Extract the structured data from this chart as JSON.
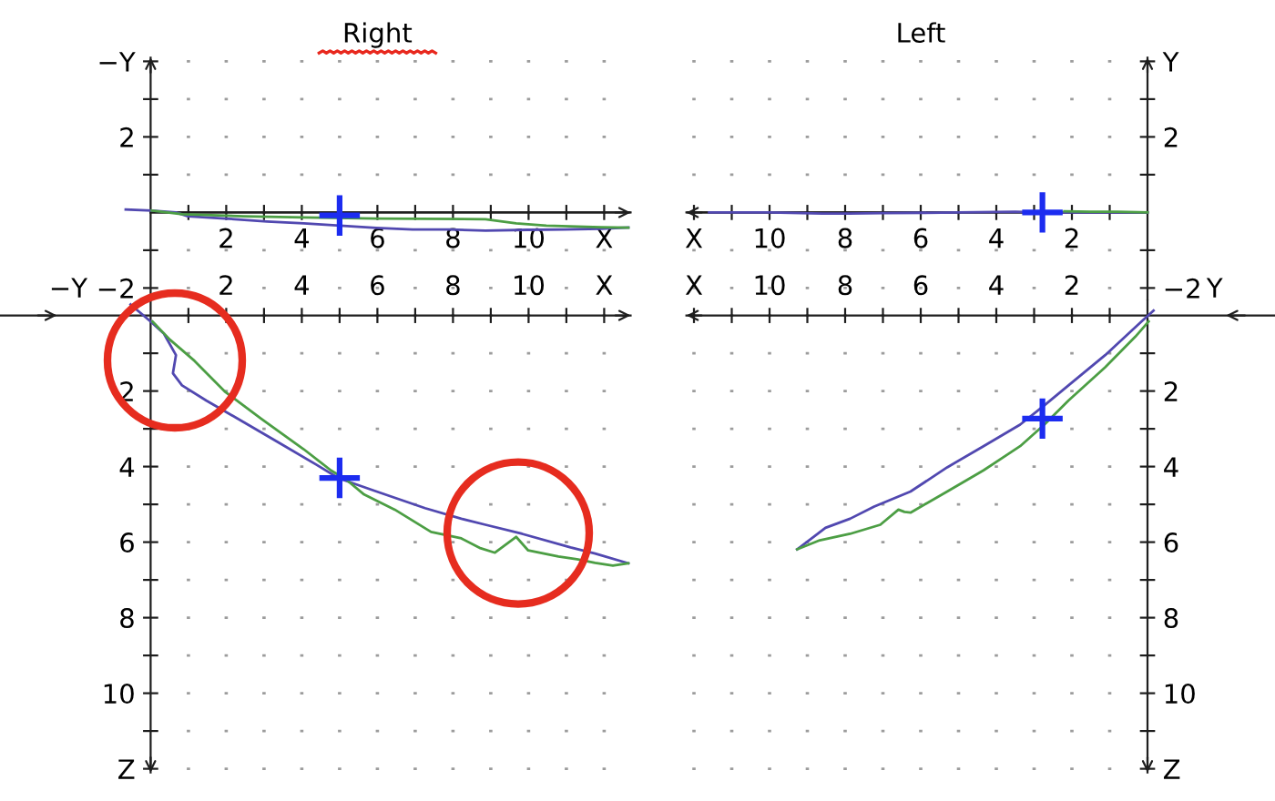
{
  "chart_data": [
    {
      "type": "line",
      "title": "Right",
      "xlim": [
        -4,
        12.7
      ],
      "ylim": [
        -2.3,
        4.1
      ],
      "xticks": [
        {
          "value": 1,
          "label": null
        },
        2,
        {
          "value": 3,
          "label": null
        },
        4,
        {
          "value": 5,
          "label": null
        },
        6,
        {
          "value": 7,
          "label": null
        },
        8,
        {
          "value": 9,
          "label": null
        },
        10,
        {
          "value": 11,
          "label": null
        },
        {
          "value": 12,
          "label": "X"
        }
      ],
      "yticks": [
        {
          "value": -2,
          "label": "−2"
        },
        {
          "value": -1,
          "label": null
        },
        {
          "value": 1,
          "label": null
        },
        2,
        {
          "value": 3,
          "label": null
        },
        {
          "value": 4,
          "label": "−Y"
        }
      ],
      "grid": "x",
      "ref_lines": [
        {
          "axis": "y",
          "value": 0
        }
      ],
      "series": [
        {
          "color": "#5148b0",
          "x": [
            -0.66,
            0.03,
            0.67,
            0.99,
            1.96,
            3.08,
            4.05,
            5.01,
            5.97,
            6.93,
            7.9,
            8.86,
            9.98,
            10.95,
            11.92,
            12.64
          ],
          "values": [
            0.08,
            0.05,
            0,
            -0.1,
            -0.16,
            -0.24,
            -0.29,
            -0.35,
            -0.41,
            -0.45,
            -0.45,
            -0.48,
            -0.46,
            -0.45,
            -0.43,
            -0.4
          ]
        },
        {
          "color": "#4c9e44",
          "x": [
            0.03,
            0.84,
            2.45,
            4.05,
            5.97,
            8.86,
            9.67,
            10.47,
            11.92,
            12.64
          ],
          "values": [
            0.05,
            -0.05,
            -0.1,
            -0.13,
            -0.16,
            -0.18,
            -0.29,
            -0.35,
            -0.39,
            -0.4
          ]
        },
        {
          "type": "scatter",
          "marker": "cross",
          "color": "#1c2cf0",
          "x": [
            5
          ],
          "values": [
            -0.08
          ]
        }
      ]
    },
    {
      "type": "line",
      "xlim": [
        -4,
        12.7
      ],
      "ylim": [
        12.1,
        -0.4
      ],
      "xticks": [
        {
          "value": 1,
          "label": null
        },
        2,
        {
          "value": 3,
          "label": null
        },
        4,
        {
          "value": 5,
          "label": null
        },
        6,
        {
          "value": 7,
          "label": null
        },
        8,
        {
          "value": 9,
          "label": null
        },
        10,
        {
          "value": 11,
          "label": null
        },
        {
          "value": 12,
          "label": "X"
        }
      ],
      "yticks": [
        {
          "value": 1,
          "label": null
        },
        2,
        {
          "value": 3,
          "label": null
        },
        4,
        {
          "value": 5,
          "label": null
        },
        6,
        {
          "value": 7,
          "label": null
        },
        8,
        {
          "value": 9,
          "label": null
        },
        10,
        {
          "value": 11,
          "label": null
        },
        {
          "value": 12,
          "label": "Z"
        }
      ],
      "grid": "x",
      "annotations": [
        "−Y"
      ],
      "series": [
        {
          "color": "#5148b0",
          "x": [
            -0.53,
            0,
            0.35,
            0.67,
            0.59,
            0.83,
            1.47,
            2.44,
            3.4,
            4.37,
            4.98,
            5.98,
            7.26,
            8.22,
            8.86,
            9.83,
            11.11,
            11.76,
            12.64
          ],
          "values": [
            -0.29,
            0.16,
            0.48,
            1.05,
            1.53,
            1.85,
            2.25,
            2.81,
            3.37,
            3.94,
            4.31,
            4.66,
            5.1,
            5.38,
            5.54,
            5.78,
            6.14,
            6.3,
            6.56
          ]
        },
        {
          "color": "#4c9e44",
          "x": [
            0.05,
            0.51,
            1.16,
            1.96,
            2.92,
            4.05,
            4.77,
            5.17,
            5.65,
            6.46,
            7.42,
            8.22,
            8.7,
            9.11,
            9.67,
            9.99,
            10.79,
            11.28,
            11.76,
            12.23,
            12.64
          ],
          "values": [
            0.16,
            0.64,
            1.2,
            2.01,
            2.73,
            3.54,
            4.1,
            4.34,
            4.74,
            5.14,
            5.73,
            5.9,
            6.15,
            6.28,
            5.86,
            6.22,
            6.38,
            6.45,
            6.55,
            6.62,
            6.56
          ]
        },
        {
          "type": "scatter",
          "marker": "cross",
          "color": "#1c2cf0",
          "x": [
            5
          ],
          "values": [
            4.3
          ]
        }
      ]
    },
    {
      "type": "line",
      "title": "Left",
      "xlim": [
        12.2,
        -3.35
      ],
      "ylim": [
        -2.3,
        4.1
      ],
      "xticks": [
        {
          "value": 1,
          "label": null
        },
        2,
        {
          "value": 3,
          "label": null
        },
        4,
        {
          "value": 5,
          "label": null
        },
        6,
        {
          "value": 7,
          "label": null
        },
        8,
        {
          "value": 9,
          "label": null
        },
        10,
        {
          "value": 11,
          "label": null
        },
        {
          "value": 12,
          "label": "X"
        }
      ],
      "yticks": [
        {
          "value": -2,
          "label": "−2"
        },
        {
          "value": -1,
          "label": null
        },
        {
          "value": 1,
          "label": null
        },
        2,
        {
          "value": 3,
          "label": null
        },
        {
          "value": 4,
          "label": "Y"
        }
      ],
      "grid": "x",
      "ref_lines": [
        {
          "axis": "y",
          "value": 0
        }
      ],
      "series": [
        {
          "color": "#5148b0",
          "x": [
            11.6,
            10,
            8.6,
            7.9,
            7,
            5,
            3.5,
            2.8,
            1,
            0
          ],
          "values": [
            0,
            0,
            -0.03,
            -0.03,
            -0.02,
            0,
            0.02,
            0,
            0,
            0
          ]
        },
        {
          "color": "#4c9e44",
          "x": [
            2.2,
            1.5,
            0.8,
            0
          ],
          "values": [
            0.03,
            0.02,
            0.02,
            0
          ]
        },
        {
          "type": "scatter",
          "marker": "cross",
          "color": "#1c2cf0",
          "x": [
            2.78
          ],
          "values": [
            0
          ]
        }
      ]
    },
    {
      "type": "line",
      "xlim": [
        12.2,
        -3.35
      ],
      "ylim": [
        12.1,
        -0.4
      ],
      "xticks": [
        {
          "value": 1,
          "label": null
        },
        2,
        {
          "value": 3,
          "label": null
        },
        4,
        {
          "value": 5,
          "label": null
        },
        6,
        {
          "value": 7,
          "label": null
        },
        8,
        {
          "value": 9,
          "label": null
        },
        10,
        {
          "value": 11,
          "label": null
        },
        {
          "value": 12,
          "label": "X"
        }
      ],
      "yticks": [
        {
          "value": 1,
          "label": null
        },
        2,
        {
          "value": 3,
          "label": null
        },
        4,
        {
          "value": 5,
          "label": null
        },
        6,
        {
          "value": 7,
          "label": null
        },
        8,
        {
          "value": 9,
          "label": null
        },
        10,
        {
          "value": 11,
          "label": null
        },
        {
          "value": 12,
          "label": "Z"
        }
      ],
      "grid": "x",
      "annotations": [
        "Y"
      ],
      "series": [
        {
          "color": "#5148b0",
          "x": [
            -0.16,
            0.16,
            1.12,
            2.09,
            2.73,
            3.37,
            4.34,
            5.3,
            6.27,
            7.23,
            7.87,
            8.52,
            9.16,
            9.27
          ],
          "values": [
            -0.13,
            0.16,
            1.05,
            1.85,
            2.38,
            2.89,
            3.46,
            4.02,
            4.66,
            5.06,
            5.38,
            5.62,
            6.11,
            6.19
          ]
        },
        {
          "color": "#4c9e44",
          "x": [
            9.27,
            8.67,
            7.87,
            7.07,
            6.59,
            6.43,
            6.27,
            5.3,
            4.34,
            3.37,
            2.73,
            2.09,
            1.12,
            0.32,
            -0.03
          ],
          "values": [
            6.19,
            5.95,
            5.78,
            5.54,
            5.14,
            5.2,
            5.22,
            4.66,
            4.1,
            3.46,
            2.89,
            2.25,
            1.37,
            0.56,
            0.16
          ]
        },
        {
          "type": "scatter",
          "marker": "cross",
          "color": "#1c2cf0",
          "x": [
            2.78
          ],
          "values": [
            2.73
          ]
        }
      ]
    }
  ]
}
